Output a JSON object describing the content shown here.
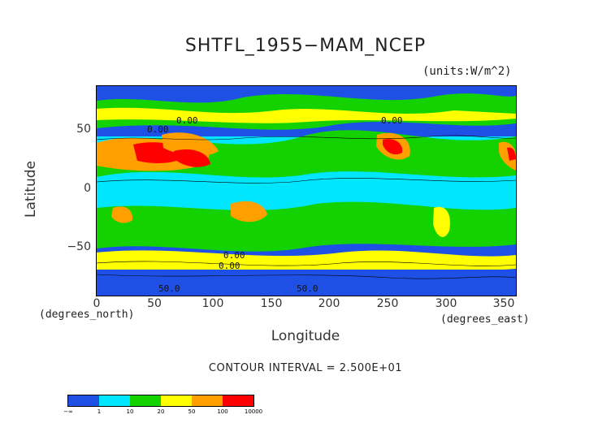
{
  "chart_data": {
    "type": "heatmap",
    "title": "SHTFL_1955−MAM_NCEP",
    "units_label": "(units:W/m^2)",
    "xlabel": "Longitude",
    "ylabel": "Latitude",
    "x_unit_note": "(degrees_east)",
    "y_unit_note": "(degrees_north)",
    "xlim": [
      0,
      360
    ],
    "ylim": [
      -90,
      90
    ],
    "x_ticks": [
      "0",
      "50",
      "100",
      "150",
      "200",
      "250",
      "300",
      "350"
    ],
    "y_ticks": [
      "50",
      "0",
      "−50"
    ],
    "contour_interval": "CONTOUR INTERVAL = 2.500E+01",
    "contour_labels": [
      "0.00",
      "50.0"
    ],
    "colorbar": {
      "boundaries": [
        "−∞",
        "1",
        "10",
        "20",
        "50",
        "100",
        "10000"
      ],
      "colors": [
        "#1e50e6",
        "#00e6ff",
        "#14d200",
        "#ffff00",
        "#ffa000",
        "#ff0000"
      ]
    }
  }
}
